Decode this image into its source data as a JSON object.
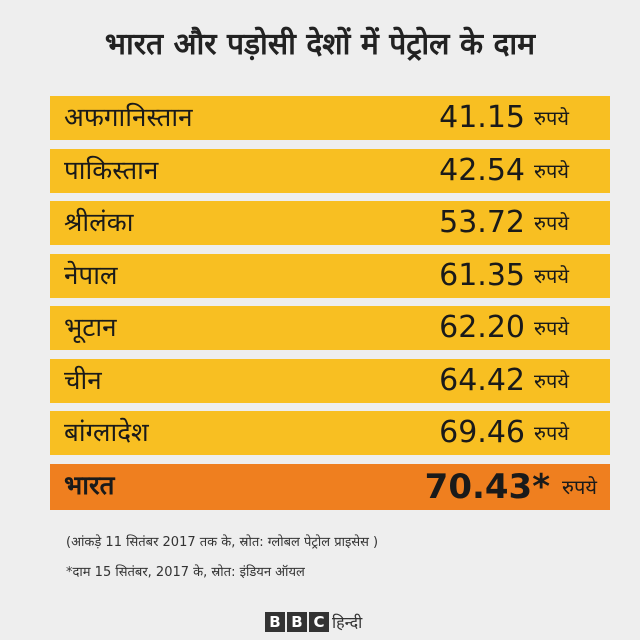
{
  "header": {
    "title": "भारत और पड़ोसी देशों में पेट्रोल के दाम"
  },
  "table": {
    "rows": [
      [
        "अफगानिस्तान",
        "41.15",
        "रुपये"
      ],
      [
        "पाकिस्तान",
        "42.54",
        "रुपये"
      ],
      [
        "श्रीलंका",
        "53.72",
        "रुपये"
      ],
      [
        "नेपाल",
        "61.35",
        "रुपये"
      ],
      [
        "भूटान",
        "62.20",
        "रुपये"
      ],
      [
        "चीन",
        "64.42",
        "रुपये"
      ],
      [
        "बांग्लादेश",
        "69.46",
        "रुपये"
      ],
      [
        "भारत",
        "70.43*",
        "रुपये"
      ]
    ]
  },
  "notes": [
    "(आंकड़े 11 सितंबर 2017 तक के, स्रोत: ग्लोबल पेट्रोल प्राइसेस )",
    "*दाम 15 सितंबर, 2017 के, स्रोत: इंडियन ऑयल"
  ],
  "logo": {
    "letters": [
      "B",
      "B",
      "C"
    ],
    "text": "हिन्दी"
  }
}
